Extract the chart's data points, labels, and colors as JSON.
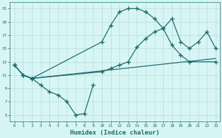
{
  "line1_x": [
    0,
    1,
    2,
    3,
    4,
    5,
    6,
    7,
    8,
    9
  ],
  "line1_y": [
    12.5,
    11.0,
    10.5,
    9.5,
    8.5,
    8.0,
    7.0,
    5.0,
    5.2,
    9.5
  ],
  "line2_x": [
    0,
    1,
    2,
    10,
    11,
    12,
    13,
    14,
    15,
    16,
    17,
    18,
    19,
    20,
    23
  ],
  "line2_y": [
    12.5,
    11.0,
    10.5,
    16.0,
    18.5,
    20.5,
    21.0,
    21.0,
    20.5,
    19.5,
    18.0,
    15.5,
    14.0,
    13.0,
    13.0
  ],
  "line3_x": [
    0,
    1,
    2,
    10,
    11,
    12,
    13,
    14,
    15,
    16,
    17,
    18,
    19,
    20,
    21,
    22,
    23
  ],
  "line3_y": [
    12.5,
    11.0,
    10.5,
    11.5,
    12.0,
    12.5,
    13.0,
    15.2,
    16.5,
    17.5,
    18.0,
    19.5,
    16.0,
    15.0,
    16.0,
    17.5,
    15.0
  ],
  "line4_x": [
    1,
    2,
    23
  ],
  "line4_y": [
    11.0,
    10.5,
    13.5
  ],
  "color": "#1a6b6b",
  "bg_color": "#d8f5f5",
  "grid_color": "#b8dada",
  "xlabel": "Humidex (Indice chaleur)",
  "xlim": [
    -0.5,
    23.5
  ],
  "ylim": [
    4,
    22
  ],
  "yticks": [
    5,
    7,
    9,
    11,
    13,
    15,
    17,
    19,
    21
  ],
  "xticks": [
    0,
    1,
    2,
    3,
    4,
    5,
    6,
    7,
    8,
    9,
    10,
    11,
    12,
    13,
    14,
    15,
    16,
    17,
    18,
    19,
    20,
    21,
    22,
    23
  ],
  "label_fontsize": 6.5
}
